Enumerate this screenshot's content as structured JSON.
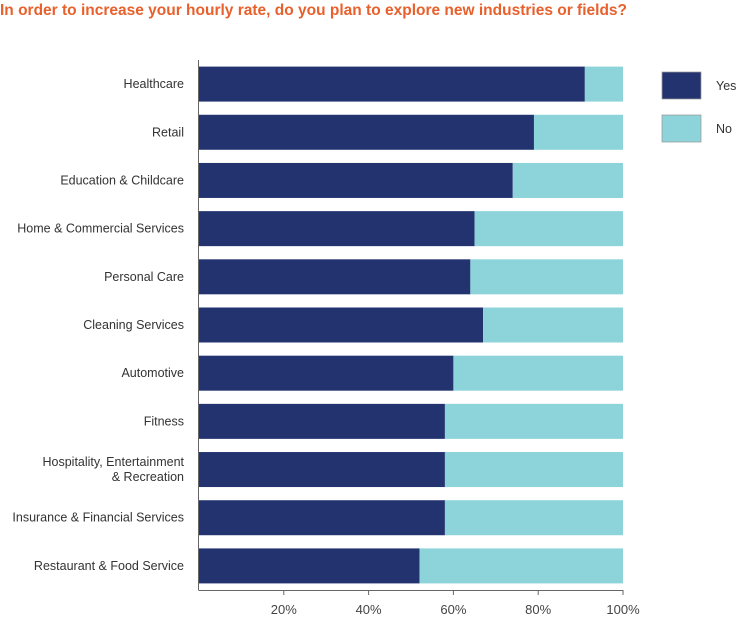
{
  "chart_data": {
    "type": "bar",
    "orientation": "horizontal",
    "stacked": true,
    "title": "In order to increase your hourly rate, do you plan to explore new industries or fields?",
    "categories": [
      "Healthcare",
      "Retail",
      "Education & Childcare",
      "Home & Commercial Services",
      "Personal Care",
      "Cleaning Services",
      "Automotive",
      "Fitness",
      "Hospitality, Entertainment & Recreation",
      "Insurance & Financial Services",
      "Restaurant & Food Service"
    ],
    "category_lines": [
      [
        "Healthcare"
      ],
      [
        "Retail"
      ],
      [
        "Education & Childcare"
      ],
      [
        "Home & Commercial Services"
      ],
      [
        "Personal Care"
      ],
      [
        "Cleaning Services"
      ],
      [
        "Automotive"
      ],
      [
        "Fitness"
      ],
      [
        "Hospitality, Entertainment",
        "& Recreation"
      ],
      [
        "Insurance & Financial Services"
      ],
      [
        "Restaurant & Food Service"
      ]
    ],
    "series": [
      {
        "name": "Yes",
        "color": "#233370",
        "values": [
          91,
          79,
          74,
          65,
          64,
          67,
          60,
          58,
          58,
          58,
          52
        ]
      },
      {
        "name": "No",
        "color": "#8dd3da",
        "values": [
          9,
          21,
          26,
          35,
          36,
          33,
          40,
          42,
          42,
          42,
          48
        ]
      }
    ],
    "xlim": [
      0,
      100
    ],
    "xticks": [
      20,
      40,
      60,
      80,
      100
    ],
    "xtick_labels": [
      "20%",
      "40%",
      "60%",
      "80%",
      "100%"
    ],
    "xlabel": "",
    "ylabel": "",
    "grid": false,
    "legend_position": "right"
  }
}
